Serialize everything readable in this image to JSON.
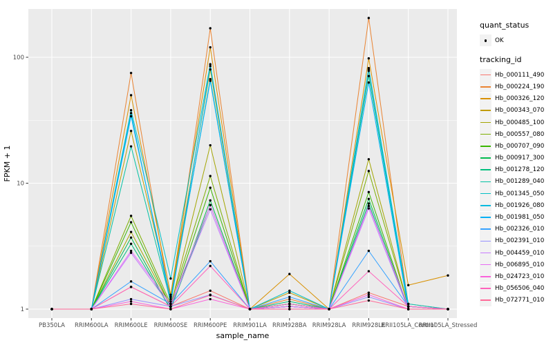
{
  "figure": {
    "background": "#FFFFFF",
    "panel_background": "#EBEBEB",
    "gridline_color": "#FFFFFF",
    "tick_label_color": "#4D4D4D",
    "axis_title_color": "#000000",
    "tick_mark_color": "#333333",
    "point_color": "#000000"
  },
  "legend": {
    "quant_status_title": "quant_status",
    "ok_label": "OK",
    "tracking_id_title": "tracking_id"
  },
  "chart_data": {
    "type": "line",
    "title": "",
    "xlabel": "sample_name",
    "ylabel": "FPKM + 1",
    "y_scale": "log10",
    "y_ticks": [
      1,
      10,
      100
    ],
    "y_minor_ticks": [
      3.162,
      31.62
    ],
    "ylim": [
      0.85,
      240
    ],
    "grid": true,
    "legend_position": "right",
    "point_marker": "filled-circle",
    "quant_status": "OK",
    "categories": [
      "PB350LA",
      "RRIM600LA",
      "RRIM600LE",
      "RRIM600SE",
      "RRIM600PE",
      "RRIM901LA",
      "RRIM928BA",
      "RRIM928LA",
      "RRIM928LE",
      "RRII105LA_Control",
      "RRII105LA_Stressed"
    ],
    "series": [
      {
        "name": "Hb_000111_490",
        "color": "#F8766D",
        "values": [
          1,
          1,
          1.5,
          1.05,
          1.4,
          1,
          1.05,
          1,
          1.35,
          1.05,
          1
        ]
      },
      {
        "name": "Hb_000224_190",
        "color": "#EA8331",
        "values": [
          1,
          1,
          75,
          1.1,
          170,
          1,
          1.2,
          1,
          205,
          1.05,
          1
        ]
      },
      {
        "name": "Hb_000326_120",
        "color": "#D89000",
        "values": [
          1,
          1,
          50,
          1.3,
          120,
          1,
          1.9,
          1,
          98,
          1.55,
          1.85
        ]
      },
      {
        "name": "Hb_000343_070",
        "color": "#C09B00",
        "values": [
          1,
          1,
          26,
          1.25,
          80,
          1,
          1.35,
          1,
          78,
          1.1,
          1
        ]
      },
      {
        "name": "Hb_000485_100",
        "color": "#A3A500",
        "values": [
          1,
          1,
          4.1,
          1.05,
          20,
          1,
          1.05,
          1,
          15.5,
          1.05,
          1
        ]
      },
      {
        "name": "Hb_000557_080",
        "color": "#7CAE00",
        "values": [
          1,
          1,
          5.5,
          1.1,
          11.4,
          1,
          1.1,
          1,
          12.5,
          1.05,
          1
        ]
      },
      {
        "name": "Hb_000707_090",
        "color": "#39B600",
        "values": [
          1,
          1,
          4.9,
          1.05,
          9.2,
          1,
          1.05,
          1,
          8.5,
          1,
          1
        ]
      },
      {
        "name": "Hb_000917_300",
        "color": "#00BB4E",
        "values": [
          1,
          1,
          3.7,
          1,
          7.3,
          1,
          1.1,
          1,
          7.5,
          1,
          1
        ]
      },
      {
        "name": "Hb_001278_120",
        "color": "#00BF7D",
        "values": [
          1,
          1,
          3.3,
          1,
          6.7,
          1,
          1.15,
          1,
          6.9,
          1,
          1
        ]
      },
      {
        "name": "Hb_001289_040",
        "color": "#00C1A3",
        "values": [
          1,
          1,
          19.6,
          1.15,
          67,
          1,
          1.1,
          1,
          71,
          1.05,
          1
        ]
      },
      {
        "name": "Hb_001345_050",
        "color": "#00BFC4",
        "values": [
          1,
          1,
          38,
          1.75,
          88,
          1,
          1.4,
          1,
          82,
          1.1,
          1
        ]
      },
      {
        "name": "Hb_001926_080",
        "color": "#00BAE0",
        "values": [
          1,
          1,
          36,
          1.1,
          85,
          1,
          1.05,
          1,
          80,
          1.05,
          1
        ]
      },
      {
        "name": "Hb_001981_050",
        "color": "#00B0F6",
        "values": [
          1,
          1,
          34,
          1.2,
          65,
          1,
          1.05,
          1,
          63,
          1,
          1
        ]
      },
      {
        "name": "Hb_002326_010",
        "color": "#35A2FF",
        "values": [
          1,
          1,
          1.66,
          1.1,
          2.4,
          1,
          1.25,
          1,
          2.9,
          1.05,
          1
        ]
      },
      {
        "name": "Hb_002391_010",
        "color": "#9590FF",
        "values": [
          1,
          1,
          1.2,
          1.05,
          1.3,
          1,
          1,
          1,
          1.25,
          1,
          1
        ]
      },
      {
        "name": "Hb_004459_010",
        "color": "#C77CFF",
        "values": [
          1,
          1,
          2.8,
          1.05,
          6.2,
          1,
          1.05,
          1,
          6.3,
          1,
          1
        ]
      },
      {
        "name": "Hb_006895_010",
        "color": "#E76BF3",
        "values": [
          1,
          1,
          2.9,
          1.1,
          6.7,
          1,
          1.05,
          1,
          6.6,
          1.05,
          1
        ]
      },
      {
        "name": "Hb_024723_010",
        "color": "#FA62DB",
        "values": [
          1,
          1,
          1.15,
          1,
          1.2,
          1,
          1,
          1,
          1.3,
          1,
          1
        ]
      },
      {
        "name": "Hb_056506_040",
        "color": "#FF62BC",
        "values": [
          1,
          1,
          1.5,
          1.05,
          2.2,
          1,
          1.1,
          1,
          2.0,
          1.05,
          1
        ]
      },
      {
        "name": "Hb_072771_010",
        "color": "#FF6A98",
        "values": [
          1,
          1,
          1.1,
          1,
          1.29,
          1,
          1,
          1,
          1.17,
          1,
          1
        ]
      }
    ]
  }
}
